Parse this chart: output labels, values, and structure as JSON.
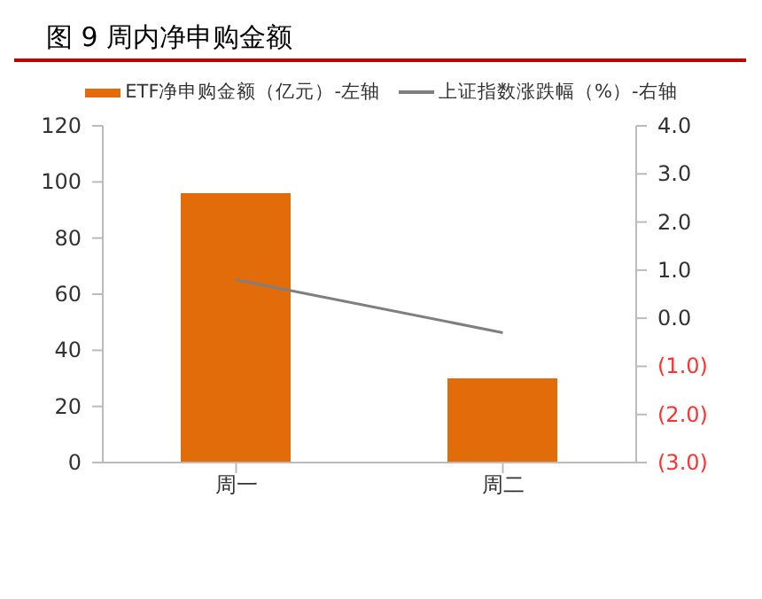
{
  "chart_data": {
    "type": "bar",
    "title": "图 9 周内净申购金额",
    "categories": [
      "周一",
      "周二"
    ],
    "series": [
      {
        "name": "ETF净申购金额（亿元）-左轴",
        "color": "#e36c0a",
        "values": [
          96,
          30
        ]
      },
      {
        "name": "上证指数涨跌幅（%）-右轴",
        "type": "line",
        "axis": "y2",
        "color": "#7f7f7f",
        "values": [
          0.8,
          -0.3
        ]
      }
    ],
    "ylim": [
      0,
      120
    ],
    "yticks": [
      0,
      20,
      40,
      60,
      80,
      100,
      120
    ],
    "y2lim": [
      -3,
      4
    ],
    "y2ticks": [
      {
        "value": -3,
        "label": "(3.0)"
      },
      {
        "value": -2,
        "label": "(2.0)"
      },
      {
        "value": -1,
        "label": "(1.0)"
      },
      {
        "value": 0,
        "label": "0.0"
      },
      {
        "value": 1,
        "label": "1.0"
      },
      {
        "value": 2,
        "label": "2.0"
      },
      {
        "value": 3,
        "label": "3.0"
      },
      {
        "value": 4,
        "label": "4.0"
      }
    ],
    "legend": "top",
    "grid": false,
    "marker": "none"
  }
}
